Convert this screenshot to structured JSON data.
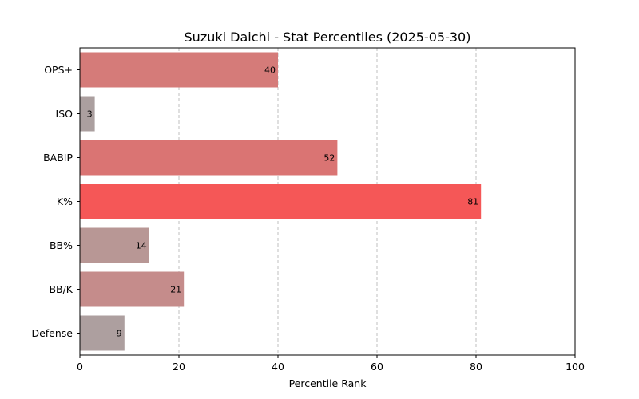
{
  "chart_data": {
    "type": "bar",
    "orientation": "horizontal",
    "title": "Suzuki Daichi - Stat Percentiles (2025-05-30)",
    "xlabel": "Percentile Rank",
    "ylabel": "",
    "xlim": [
      0,
      100
    ],
    "xticks": [
      0,
      20,
      40,
      60,
      80,
      100
    ],
    "grid": "vertical-dashed",
    "categories": [
      "OPS+",
      "ISO",
      "BABIP",
      "K%",
      "BB%",
      "BB/K",
      "Defense"
    ],
    "values": [
      40,
      3,
      52,
      81,
      14,
      21,
      9
    ],
    "colors": [
      "#d57b79",
      "#ab9f9f",
      "#da7473",
      "#f55757",
      "#b89795",
      "#c58c8b",
      "#ad9f9f"
    ]
  }
}
